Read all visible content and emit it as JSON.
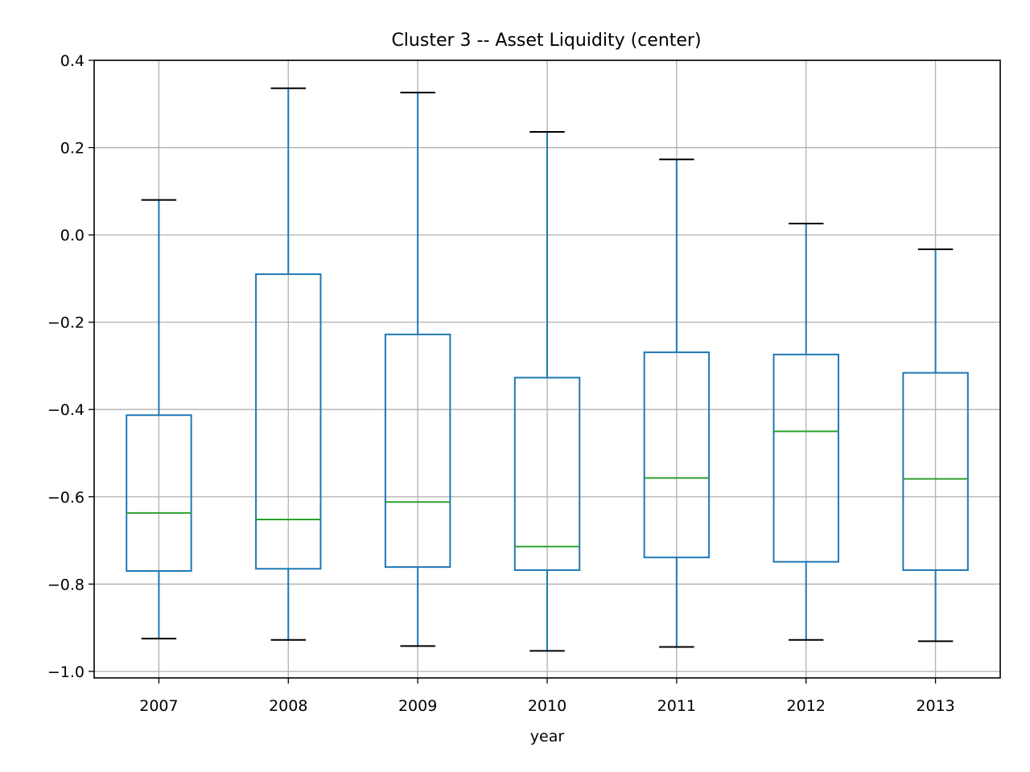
{
  "chart_data": {
    "type": "box",
    "title": "Cluster 3 -- Asset Liquidity (center)",
    "xlabel": "year",
    "ylabel": "",
    "ylim": [
      -1.015,
      0.4
    ],
    "yticks": [
      0.4,
      0.2,
      0.0,
      -0.2,
      -0.4,
      -0.6,
      -0.8,
      -1.0
    ],
    "ytick_labels": [
      "0.4",
      "0.2",
      "0.0",
      "−0.2",
      "−0.4",
      "−0.6",
      "−0.8",
      "−1.0"
    ],
    "grid": true,
    "categories": [
      "2007",
      "2008",
      "2009",
      "2010",
      "2011",
      "2012",
      "2013"
    ],
    "boxes": [
      {
        "category": "2007",
        "whisker_low": -0.925,
        "q1": -0.77,
        "median": -0.637,
        "q3": -0.413,
        "whisker_high": 0.08
      },
      {
        "category": "2008",
        "whisker_low": -0.928,
        "q1": -0.765,
        "median": -0.652,
        "q3": -0.09,
        "whisker_high": 0.336
      },
      {
        "category": "2009",
        "whisker_low": -0.942,
        "q1": -0.761,
        "median": -0.612,
        "q3": -0.228,
        "whisker_high": 0.326
      },
      {
        "category": "2010",
        "whisker_low": -0.953,
        "q1": -0.768,
        "median": -0.714,
        "q3": -0.327,
        "whisker_high": 0.236
      },
      {
        "category": "2011",
        "whisker_low": -0.944,
        "q1": -0.739,
        "median": -0.557,
        "q3": -0.269,
        "whisker_high": 0.173
      },
      {
        "category": "2012",
        "whisker_low": -0.928,
        "q1": -0.749,
        "median": -0.45,
        "q3": -0.274,
        "whisker_high": 0.026
      },
      {
        "category": "2013",
        "whisker_low": -0.931,
        "q1": -0.768,
        "median": -0.559,
        "q3": -0.316,
        "whisker_high": -0.033
      }
    ],
    "colors": {
      "box": "#1f77b4",
      "median": "#2ca02c",
      "cap": "#000000",
      "grid": "#b0b0b0"
    }
  }
}
